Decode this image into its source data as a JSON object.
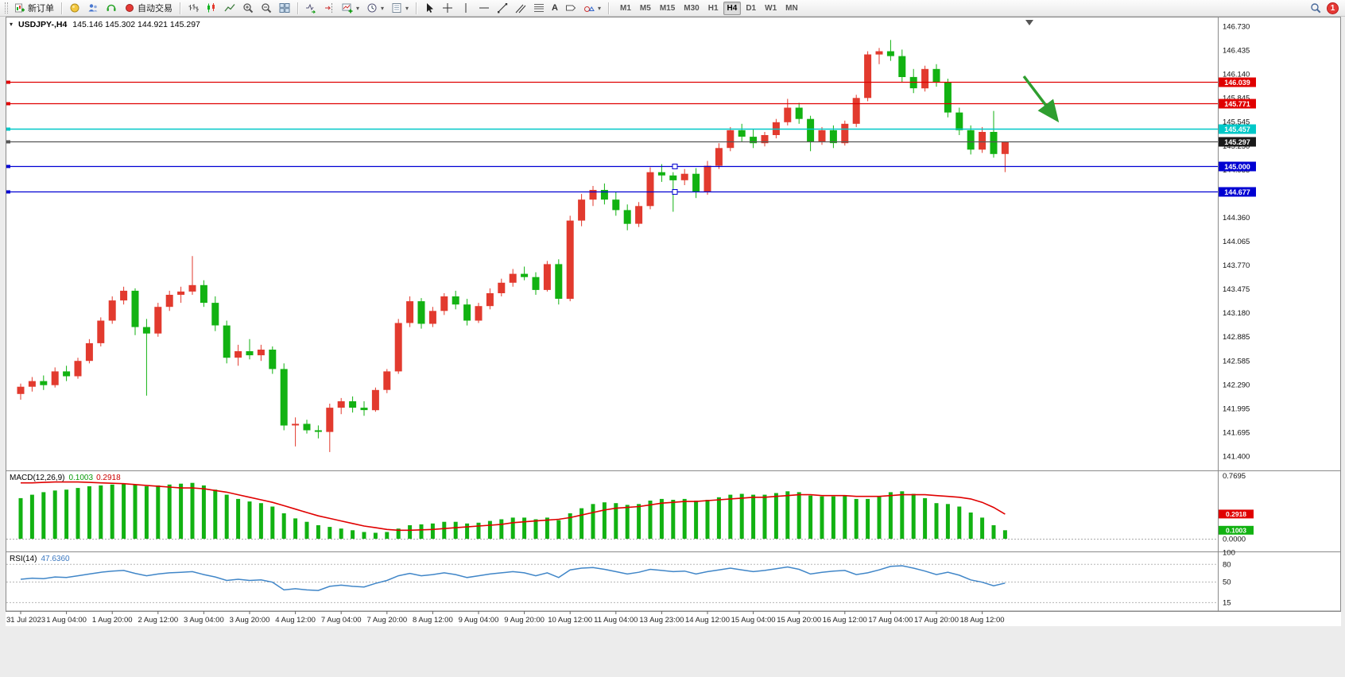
{
  "toolbar": {
    "new_order": "新订单",
    "auto_trading": "自动交易",
    "timeframes": [
      "M1",
      "M5",
      "M15",
      "M30",
      "H1",
      "H4",
      "D1",
      "W1",
      "MN"
    ],
    "active_timeframe": "H4",
    "notification_badge": "1",
    "text_tool_label": "A"
  },
  "chart_header": {
    "symbol_period": "USDJPY-,H4",
    "ohlc": "145.146 145.302 144.921 145.297"
  },
  "indicators": {
    "macd": {
      "name": "MACD(12,26,9)",
      "main_value": "0.1003",
      "signal_value": "0.2918"
    },
    "rsi": {
      "name": "RSI(14)",
      "value": "47.6360"
    }
  },
  "chart_data": {
    "type": "candlestick",
    "symbol": "USDJPY-",
    "period": "H4",
    "current_ohlc": {
      "open": 145.146,
      "high": 145.302,
      "low": 144.921,
      "close": 145.297
    },
    "price_axis_labels": [
      "146.730",
      "146.435",
      "146.140",
      "145.845",
      "145.545",
      "145.250",
      "144.955",
      "144.660",
      "144.360",
      "144.065",
      "143.770",
      "143.475",
      "143.180",
      "142.885",
      "142.585",
      "142.290",
      "141.995",
      "141.695",
      "141.400"
    ],
    "hlines": [
      {
        "price": 146.039,
        "label": "146.039",
        "color": "red"
      },
      {
        "price": 145.771,
        "label": "145.771",
        "color": "red"
      },
      {
        "price": 145.457,
        "label": "145.457",
        "color": "cyan"
      },
      {
        "price": 145.297,
        "label": "145.297",
        "color": "bid"
      },
      {
        "price": 145.0,
        "label": "145.000",
        "color": "blue",
        "handles": true
      },
      {
        "price": 144.677,
        "label": "144.677",
        "color": "blue",
        "handles": true
      }
    ],
    "candles": [
      [
        142.17,
        142.3,
        142.1,
        142.26
      ],
      [
        142.26,
        142.38,
        142.2,
        142.33
      ],
      [
        142.33,
        142.4,
        142.22,
        142.28
      ],
      [
        142.28,
        142.5,
        142.25,
        142.45
      ],
      [
        142.45,
        142.52,
        142.33,
        142.39
      ],
      [
        142.39,
        142.62,
        142.36,
        142.58
      ],
      [
        142.58,
        142.85,
        142.55,
        142.8
      ],
      [
        142.8,
        143.12,
        142.76,
        143.08
      ],
      [
        143.08,
        143.38,
        143.04,
        143.33
      ],
      [
        143.33,
        143.5,
        143.28,
        143.45
      ],
      [
        143.45,
        143.48,
        142.9,
        143.0
      ],
      [
        143.0,
        143.1,
        142.15,
        142.92
      ],
      [
        142.92,
        143.3,
        142.88,
        143.25
      ],
      [
        143.25,
        143.45,
        143.2,
        143.4
      ],
      [
        143.4,
        143.5,
        143.3,
        143.44
      ],
      [
        143.44,
        143.88,
        143.4,
        143.52
      ],
      [
        143.52,
        143.58,
        143.25,
        143.3
      ],
      [
        143.3,
        143.38,
        142.95,
        143.02
      ],
      [
        143.02,
        143.08,
        142.55,
        142.62
      ],
      [
        142.62,
        142.78,
        142.52,
        142.7
      ],
      [
        142.7,
        142.85,
        142.6,
        142.65
      ],
      [
        142.65,
        142.78,
        142.58,
        142.72
      ],
      [
        142.72,
        142.76,
        142.42,
        142.48
      ],
      [
        142.48,
        142.55,
        141.72,
        141.78
      ],
      [
        141.78,
        141.88,
        141.52,
        141.8
      ],
      [
        141.8,
        141.85,
        141.68,
        141.72
      ],
      [
        141.72,
        141.78,
        141.62,
        141.7
      ],
      [
        141.7,
        142.05,
        141.45,
        142.0
      ],
      [
        142.0,
        142.12,
        141.92,
        142.08
      ],
      [
        142.08,
        142.14,
        141.94,
        142.0
      ],
      [
        142.0,
        142.08,
        141.9,
        141.97
      ],
      [
        141.97,
        142.25,
        141.95,
        142.22
      ],
      [
        142.22,
        142.48,
        142.18,
        142.45
      ],
      [
        142.45,
        143.1,
        142.42,
        143.05
      ],
      [
        143.05,
        143.38,
        143.0,
        143.32
      ],
      [
        143.32,
        143.36,
        142.98,
        143.04
      ],
      [
        143.04,
        143.25,
        143.0,
        143.2
      ],
      [
        143.2,
        143.42,
        143.15,
        143.38
      ],
      [
        143.38,
        143.45,
        143.22,
        143.28
      ],
      [
        143.28,
        143.35,
        143.02,
        143.08
      ],
      [
        143.08,
        143.3,
        143.05,
        143.26
      ],
      [
        143.26,
        143.48,
        143.22,
        143.42
      ],
      [
        143.42,
        143.6,
        143.38,
        143.55
      ],
      [
        143.55,
        143.72,
        143.5,
        143.66
      ],
      [
        143.66,
        143.75,
        143.58,
        143.62
      ],
      [
        143.62,
        143.68,
        143.4,
        143.46
      ],
      [
        143.46,
        143.82,
        143.44,
        143.78
      ],
      [
        143.78,
        143.84,
        143.28,
        143.35
      ],
      [
        143.35,
        144.38,
        143.32,
        144.32
      ],
      [
        144.32,
        144.65,
        144.25,
        144.58
      ],
      [
        144.58,
        144.75,
        144.5,
        144.7
      ],
      [
        144.7,
        144.78,
        144.52,
        144.58
      ],
      [
        144.58,
        144.68,
        144.38,
        144.45
      ],
      [
        144.45,
        144.52,
        144.2,
        144.28
      ],
      [
        144.28,
        144.55,
        144.24,
        144.5
      ],
      [
        144.5,
        144.98,
        144.46,
        144.92
      ],
      [
        144.92,
        145.02,
        144.8,
        144.88
      ],
      [
        144.88,
        144.92,
        144.43,
        144.82
      ],
      [
        144.82,
        144.96,
        144.76,
        144.9
      ],
      [
        144.9,
        144.97,
        144.6,
        144.68
      ],
      [
        144.68,
        145.06,
        144.64,
        145.0
      ],
      [
        145.0,
        145.28,
        144.96,
        145.22
      ],
      [
        145.22,
        145.48,
        145.18,
        145.44
      ],
      [
        145.44,
        145.52,
        145.3,
        145.36
      ],
      [
        145.36,
        145.45,
        145.22,
        145.28
      ],
      [
        145.28,
        145.42,
        145.24,
        145.38
      ],
      [
        145.38,
        145.58,
        145.34,
        145.54
      ],
      [
        145.54,
        145.83,
        145.5,
        145.72
      ],
      [
        145.72,
        145.78,
        145.52,
        145.58
      ],
      [
        145.58,
        145.62,
        145.18,
        145.3
      ],
      [
        145.3,
        145.48,
        145.26,
        145.44
      ],
      [
        145.44,
        145.5,
        145.22,
        145.28
      ],
      [
        145.28,
        145.56,
        145.25,
        145.52
      ],
      [
        145.52,
        145.88,
        145.48,
        145.84
      ],
      [
        145.84,
        146.42,
        145.8,
        146.38
      ],
      [
        146.38,
        146.46,
        146.26,
        146.42
      ],
      [
        146.42,
        146.56,
        146.3,
        146.36
      ],
      [
        146.36,
        146.44,
        146.04,
        146.1
      ],
      [
        146.1,
        146.2,
        145.9,
        145.96
      ],
      [
        145.96,
        146.24,
        145.92,
        146.2
      ],
      [
        146.2,
        146.26,
        145.98,
        146.04
      ],
      [
        146.04,
        146.08,
        145.6,
        145.66
      ],
      [
        145.66,
        145.72,
        145.38,
        145.44
      ],
      [
        145.44,
        145.5,
        145.14,
        145.2
      ],
      [
        145.2,
        145.48,
        145.16,
        145.42
      ],
      [
        145.42,
        145.68,
        145.1,
        145.146
      ],
      [
        145.146,
        145.302,
        144.921,
        145.297
      ]
    ],
    "time_axis": [
      {
        "i": 0,
        "label": "31 Jul 2023"
      },
      {
        "i": 4,
        "label": "1 Aug 04:00"
      },
      {
        "i": 8,
        "label": "1 Aug 20:00"
      },
      {
        "i": 12,
        "label": "2 Aug 12:00"
      },
      {
        "i": 16,
        "label": "3 Aug 04:00"
      },
      {
        "i": 20,
        "label": "3 Aug 20:00"
      },
      {
        "i": 24,
        "label": "4 Aug 12:00"
      },
      {
        "i": 28,
        "label": "7 Aug 04:00"
      },
      {
        "i": 32,
        "label": "7 Aug 20:00"
      },
      {
        "i": 36,
        "label": "8 Aug 12:00"
      },
      {
        "i": 40,
        "label": "9 Aug 04:00"
      },
      {
        "i": 44,
        "label": "9 Aug 20:00"
      },
      {
        "i": 48,
        "label": "10 Aug 12:00"
      },
      {
        "i": 52,
        "label": "11 Aug 04:00"
      },
      {
        "i": 56,
        "label": "13 Aug 23:00"
      },
      {
        "i": 60,
        "label": "14 Aug 12:00"
      },
      {
        "i": 64,
        "label": "15 Aug 04:00"
      },
      {
        "i": 68,
        "label": "15 Aug 20:00"
      },
      {
        "i": 72,
        "label": "16 Aug 12:00"
      },
      {
        "i": 76,
        "label": "17 Aug 04:00"
      },
      {
        "i": 80,
        "label": "17 Aug 20:00"
      },
      {
        "i": 84,
        "label": "18 Aug 12:00"
      }
    ],
    "macd": {
      "params": "12,26,9",
      "histogram": [
        0.48,
        0.52,
        0.55,
        0.57,
        0.58,
        0.6,
        0.62,
        0.63,
        0.64,
        0.65,
        0.64,
        0.62,
        0.63,
        0.64,
        0.65,
        0.66,
        0.63,
        0.58,
        0.52,
        0.47,
        0.44,
        0.42,
        0.38,
        0.3,
        0.24,
        0.2,
        0.16,
        0.14,
        0.12,
        0.1,
        0.08,
        0.07,
        0.08,
        0.12,
        0.16,
        0.17,
        0.18,
        0.2,
        0.2,
        0.18,
        0.19,
        0.21,
        0.23,
        0.25,
        0.25,
        0.23,
        0.25,
        0.22,
        0.3,
        0.36,
        0.41,
        0.43,
        0.42,
        0.4,
        0.41,
        0.45,
        0.47,
        0.46,
        0.47,
        0.45,
        0.46,
        0.49,
        0.52,
        0.53,
        0.52,
        0.52,
        0.54,
        0.56,
        0.55,
        0.51,
        0.5,
        0.5,
        0.51,
        0.47,
        0.47,
        0.5,
        0.55,
        0.56,
        0.53,
        0.48,
        0.42,
        0.41,
        0.38,
        0.31,
        0.25,
        0.16,
        0.1
      ],
      "signal": [
        0.66,
        0.66,
        0.665,
        0.67,
        0.67,
        0.67,
        0.665,
        0.66,
        0.655,
        0.65,
        0.64,
        0.63,
        0.62,
        0.61,
        0.6,
        0.6,
        0.59,
        0.57,
        0.55,
        0.52,
        0.49,
        0.46,
        0.43,
        0.39,
        0.35,
        0.31,
        0.27,
        0.24,
        0.21,
        0.18,
        0.15,
        0.13,
        0.11,
        0.1,
        0.1,
        0.105,
        0.11,
        0.12,
        0.13,
        0.14,
        0.15,
        0.16,
        0.17,
        0.19,
        0.2,
        0.21,
        0.22,
        0.23,
        0.25,
        0.28,
        0.31,
        0.34,
        0.36,
        0.37,
        0.38,
        0.4,
        0.42,
        0.43,
        0.44,
        0.44,
        0.45,
        0.46,
        0.47,
        0.48,
        0.49,
        0.49,
        0.5,
        0.51,
        0.52,
        0.52,
        0.51,
        0.51,
        0.51,
        0.5,
        0.5,
        0.5,
        0.51,
        0.52,
        0.52,
        0.52,
        0.51,
        0.5,
        0.49,
        0.47,
        0.43,
        0.37,
        0.29
      ],
      "axis_max": "0.7695",
      "axis_zero": "0.0000",
      "main_tag": "0.1003",
      "signal_tag": "0.2918"
    },
    "rsi": {
      "params": "14",
      "values": [
        54,
        56,
        55,
        58,
        57,
        60,
        63,
        66,
        68,
        69,
        64,
        60,
        63,
        65,
        66,
        67,
        62,
        58,
        52,
        54,
        52,
        53,
        49,
        36,
        38,
        36,
        35,
        42,
        44,
        42,
        41,
        47,
        52,
        60,
        64,
        60,
        62,
        65,
        62,
        57,
        60,
        63,
        65,
        67,
        65,
        60,
        65,
        57,
        70,
        73,
        74,
        71,
        67,
        63,
        66,
        71,
        69,
        67,
        68,
        63,
        67,
        70,
        73,
        70,
        67,
        69,
        72,
        75,
        71,
        63,
        66,
        68,
        69,
        62,
        65,
        70,
        76,
        77,
        73,
        68,
        62,
        66,
        61,
        53,
        49,
        43,
        47.6
      ],
      "axis": [
        [
          100,
          "100"
        ],
        [
          80,
          "80"
        ],
        [
          50,
          "50"
        ],
        [
          15,
          "15"
        ]
      ],
      "levels": [
        80,
        50,
        15
      ]
    },
    "colors": {
      "bull": "#e23a2e",
      "bear": "#12b212",
      "macd_hist": "#12b212",
      "macd_signal": "#e00000",
      "rsi": "#4086c8",
      "line_red": "#e00000",
      "line_blue": "#0000d2",
      "line_cyan": "#00c8c8",
      "bid_line": "#555555",
      "bid_tag": "#1a1a1a",
      "arrow": "#2f9e2f"
    }
  }
}
